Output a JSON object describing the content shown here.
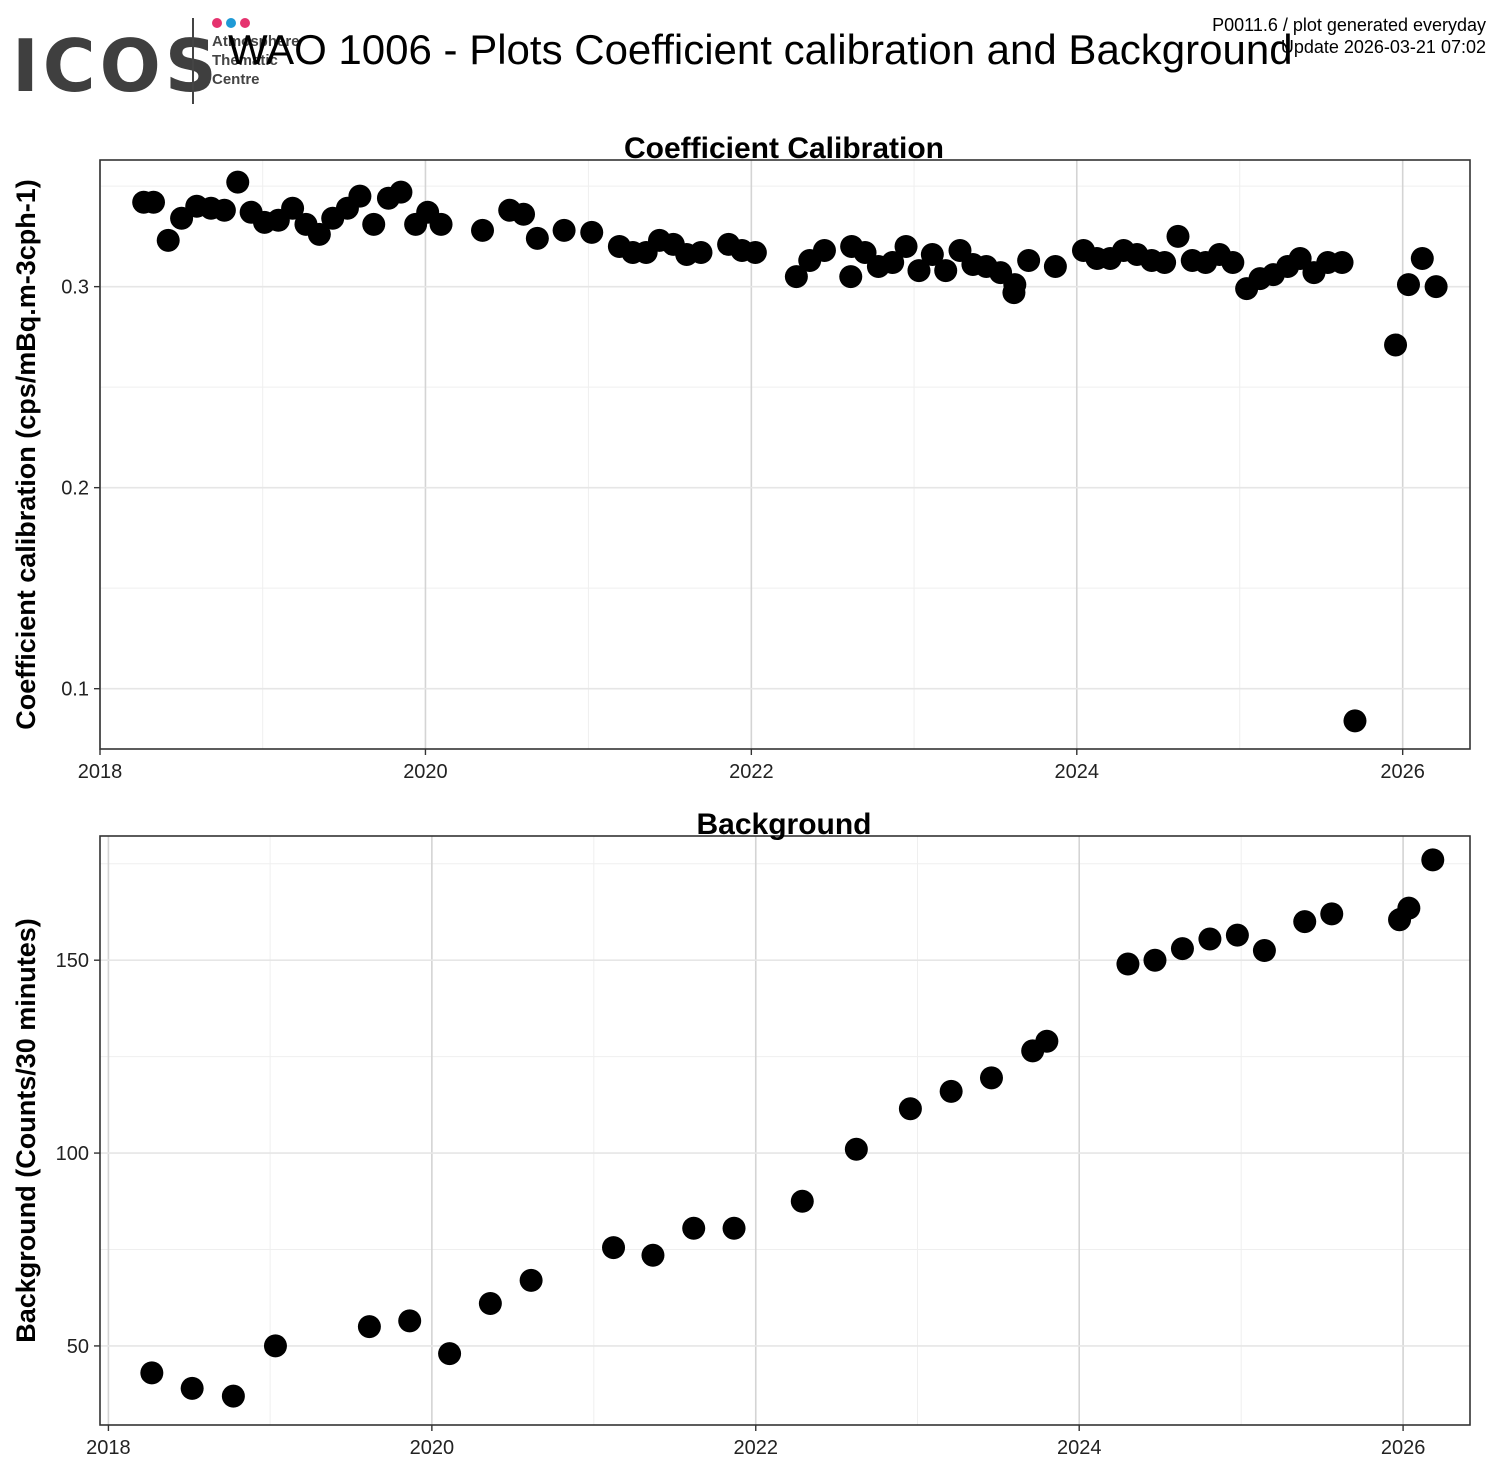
{
  "header": {
    "logo_text": "ICOS",
    "logo_subtitle": "Atmosphere\nThematic\nCentre",
    "logo_colors": [
      "#e5326e",
      "#1e9ad6",
      "#e5326e"
    ],
    "title": "WAO 1006 - Plots Coefficient calibration and Background",
    "meta_line1": "P0011.6 / plot generated everyday",
    "meta_line2": "Update  2026-03-21 07:02"
  },
  "chart_data": [
    {
      "type": "scatter",
      "title": "Coefficient Calibration",
      "xlabel": "",
      "ylabel": "Coefficient calibration (cps/mBq.m-3cph-1)",
      "xlim": [
        "2018-01-01",
        "2026-06-01"
      ],
      "ylim": [
        0.07,
        0.363
      ],
      "x_ticks": [
        "2018-01-01",
        "2020-01-01",
        "2022-01-01",
        "2024-01-01",
        "2026-01-01"
      ],
      "x_tick_labels": [
        "2018",
        "2020",
        "2022",
        "2024",
        "2026"
      ],
      "y_ticks": [
        0.1,
        0.2,
        0.3
      ],
      "y_tick_labels": [
        "0.1",
        "0.2",
        "0.3"
      ],
      "grid": true,
      "point_color": "#000000",
      "points": [
        [
          "2018-04-09",
          0.342
        ],
        [
          "2018-05-01",
          0.342
        ],
        [
          "2018-06-03",
          0.323
        ],
        [
          "2018-07-03",
          0.334
        ],
        [
          "2018-08-06",
          0.34
        ],
        [
          "2018-09-07",
          0.339
        ],
        [
          "2018-10-07",
          0.338
        ],
        [
          "2018-11-06",
          0.352
        ],
        [
          "2018-12-06",
          0.337
        ],
        [
          "2019-01-05",
          0.332
        ],
        [
          "2019-02-05",
          0.333
        ],
        [
          "2019-03-09",
          0.339
        ],
        [
          "2019-04-08",
          0.331
        ],
        [
          "2019-05-08",
          0.326
        ],
        [
          "2019-06-07",
          0.334
        ],
        [
          "2019-07-10",
          0.339
        ],
        [
          "2019-08-07",
          0.345
        ],
        [
          "2019-09-07",
          0.331
        ],
        [
          "2019-10-10",
          0.344
        ],
        [
          "2019-11-07",
          0.347
        ],
        [
          "2019-12-10",
          0.331
        ],
        [
          "2020-01-06",
          0.337
        ],
        [
          "2020-02-05",
          0.331
        ],
        [
          "2020-05-08",
          0.328
        ],
        [
          "2020-07-08",
          0.338
        ],
        [
          "2020-08-08",
          0.336
        ],
        [
          "2020-09-08",
          0.324
        ],
        [
          "2020-11-07",
          0.328
        ],
        [
          "2021-01-08",
          0.327
        ],
        [
          "2021-03-11",
          0.32
        ],
        [
          "2021-04-10",
          0.317
        ],
        [
          "2021-05-10",
          0.317
        ],
        [
          "2021-06-09",
          0.323
        ],
        [
          "2021-07-10",
          0.321
        ],
        [
          "2021-08-09",
          0.316
        ],
        [
          "2021-09-10",
          0.317
        ],
        [
          "2021-11-11",
          0.321
        ],
        [
          "2021-12-11",
          0.318
        ],
        [
          "2022-01-10",
          0.317
        ],
        [
          "2022-04-12",
          0.305
        ],
        [
          "2022-05-12",
          0.313
        ],
        [
          "2022-06-14",
          0.318
        ],
        [
          "2022-08-12",
          0.305
        ],
        [
          "2022-08-14",
          0.32
        ],
        [
          "2022-09-13",
          0.317
        ],
        [
          "2022-10-13",
          0.31
        ],
        [
          "2022-11-14",
          0.312
        ],
        [
          "2022-12-14",
          0.32
        ],
        [
          "2023-01-12",
          0.308
        ],
        [
          "2023-02-11",
          0.316
        ],
        [
          "2023-03-13",
          0.308
        ],
        [
          "2023-04-14",
          0.318
        ],
        [
          "2023-05-13",
          0.311
        ],
        [
          "2023-06-12",
          0.31
        ],
        [
          "2023-07-14",
          0.307
        ],
        [
          "2023-08-13",
          0.297
        ],
        [
          "2023-08-15",
          0.301
        ],
        [
          "2023-09-15",
          0.313
        ],
        [
          "2023-11-14",
          0.31
        ],
        [
          "2024-01-16",
          0.318
        ],
        [
          "2024-02-15",
          0.314
        ],
        [
          "2024-03-16",
          0.314
        ],
        [
          "2024-04-15",
          0.318
        ],
        [
          "2024-05-15",
          0.316
        ],
        [
          "2024-06-17",
          0.313
        ],
        [
          "2024-07-16",
          0.312
        ],
        [
          "2024-08-15",
          0.325
        ],
        [
          "2024-09-16",
          0.313
        ],
        [
          "2024-10-16",
          0.312
        ],
        [
          "2024-11-16",
          0.316
        ],
        [
          "2024-12-16",
          0.312
        ],
        [
          "2025-01-16",
          0.299
        ],
        [
          "2025-02-15",
          0.304
        ],
        [
          "2025-03-17",
          0.306
        ],
        [
          "2025-04-18",
          0.31
        ],
        [
          "2025-05-16",
          0.314
        ],
        [
          "2025-06-16",
          0.307
        ],
        [
          "2025-07-17",
          0.312
        ],
        [
          "2025-08-18",
          0.312
        ],
        [
          "2025-09-16",
          0.084
        ],
        [
          "2025-12-16",
          0.271
        ],
        [
          "2026-01-14",
          0.301
        ],
        [
          "2026-02-14",
          0.314
        ],
        [
          "2026-03-17",
          0.3
        ]
      ]
    },
    {
      "type": "scatter",
      "title": "Background",
      "xlabel": "",
      "ylabel": "Background (Counts/30 minutes)",
      "xlim": [
        "2017-12-13",
        "2026-06-01"
      ],
      "ylim": [
        29.5,
        182.2
      ],
      "x_ticks": [
        "2018-01-01",
        "2020-01-01",
        "2022-01-01",
        "2024-01-01",
        "2026-01-01"
      ],
      "x_tick_labels": [
        "2018",
        "2020",
        "2022",
        "2024",
        "2026"
      ],
      "y_ticks": [
        50,
        100,
        150
      ],
      "y_tick_labels": [
        "50",
        "100",
        "150"
      ],
      "grid": true,
      "point_color": "#000000",
      "points": [
        [
          "2018-04-09",
          43
        ],
        [
          "2018-07-09",
          39
        ],
        [
          "2018-10-10",
          37
        ],
        [
          "2019-01-13",
          50
        ],
        [
          "2019-08-13",
          55
        ],
        [
          "2019-11-12",
          56.5
        ],
        [
          "2020-02-10",
          48
        ],
        [
          "2020-05-12",
          61
        ],
        [
          "2020-08-12",
          67
        ],
        [
          "2021-02-14",
          75.5
        ],
        [
          "2021-05-14",
          73.5
        ],
        [
          "2021-08-14",
          80.5
        ],
        [
          "2021-11-13",
          80.5
        ],
        [
          "2022-04-16",
          87.5
        ],
        [
          "2022-08-16",
          101
        ],
        [
          "2022-12-16",
          111.5
        ],
        [
          "2023-03-18",
          116
        ],
        [
          "2023-06-17",
          119.5
        ],
        [
          "2023-09-18",
          126.5
        ],
        [
          "2023-10-20",
          129
        ],
        [
          "2024-04-20",
          149
        ],
        [
          "2024-06-20",
          150
        ],
        [
          "2024-08-21",
          153
        ],
        [
          "2024-10-22",
          155.5
        ],
        [
          "2024-12-23",
          156.5
        ],
        [
          "2025-02-22",
          152.5
        ],
        [
          "2025-05-24",
          160
        ],
        [
          "2025-07-24",
          162
        ],
        [
          "2025-12-24",
          160.5
        ],
        [
          "2026-01-14",
          163.5
        ],
        [
          "2026-03-09",
          176
        ]
      ]
    }
  ]
}
